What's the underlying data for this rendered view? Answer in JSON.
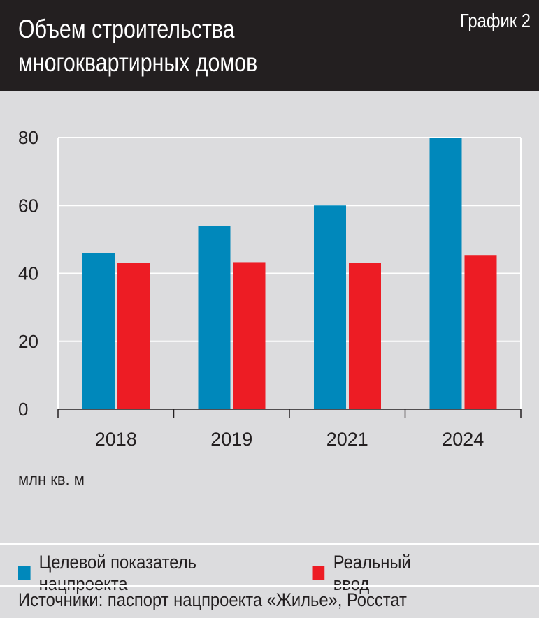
{
  "header": {
    "title_line1": "Объем строительства",
    "title_line2": "многоквартирных домов",
    "chart_number": "График 2"
  },
  "chart_data": {
    "type": "bar",
    "categories": [
      "2018",
      "2019",
      "2021",
      "2024"
    ],
    "series": [
      {
        "name": "Целевой показатель нацпроекта",
        "color": "#0088bb",
        "values": [
          46,
          54,
          60,
          80
        ]
      },
      {
        "name": "Реальный ввод",
        "color": "#ed1c24",
        "values": [
          43,
          43.3,
          43,
          45.4
        ]
      }
    ],
    "ylabel": "млн кв. м",
    "ylim": [
      0,
      80
    ],
    "yticks": [
      "0",
      "20",
      "40",
      "60",
      "80"
    ],
    "grid": true,
    "legend": "bottom"
  },
  "source": "Источники: паспорт нацпроекта «Жилье», Росстат"
}
